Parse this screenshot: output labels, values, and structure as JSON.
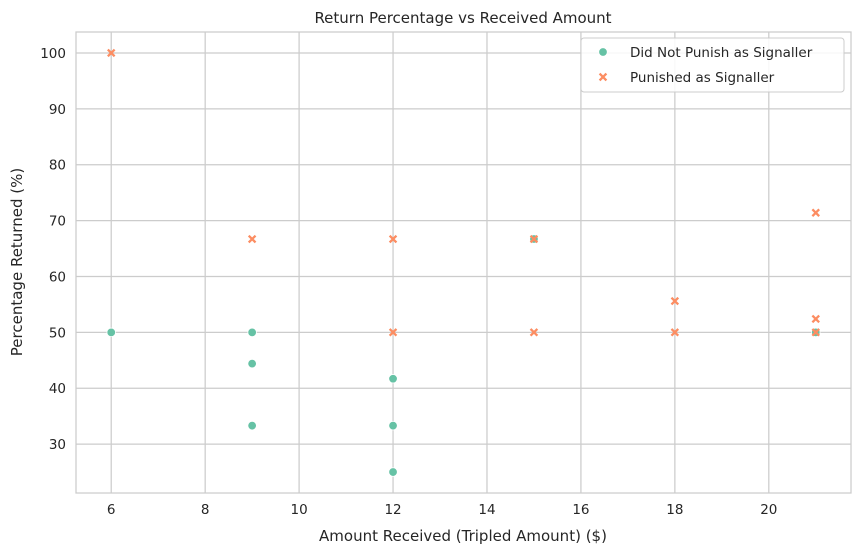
{
  "chart_data": {
    "type": "scatter",
    "title": "Return Percentage vs Received Amount",
    "xlabel": "Amount Received (Tripled Amount) ($)",
    "ylabel": "Percentage Returned (%)",
    "xlim": [
      5.25,
      21.75
    ],
    "ylim": [
      21.25,
      103.75
    ],
    "xticks": [
      "6",
      "8",
      "10",
      "12",
      "14",
      "16",
      "18",
      "20"
    ],
    "yticks": [
      "30",
      "40",
      "50",
      "60",
      "70",
      "80",
      "90",
      "100"
    ],
    "grid": true,
    "legend_position": "top-right",
    "series": [
      {
        "name": "Did Not Punish as Signaller",
        "marker": "circle",
        "color": "#66c2a5",
        "points": [
          [
            6,
            50
          ],
          [
            9,
            50
          ],
          [
            9,
            44.4
          ],
          [
            9,
            33.3
          ],
          [
            12,
            41.7
          ],
          [
            12,
            33.3
          ],
          [
            12,
            25
          ],
          [
            15,
            66.7
          ],
          [
            21,
            50
          ]
        ]
      },
      {
        "name": "Punished as Signaller",
        "marker": "x",
        "color": "#fc8d62",
        "points": [
          [
            6,
            100
          ],
          [
            9,
            66.7
          ],
          [
            12,
            66.7
          ],
          [
            12,
            50
          ],
          [
            15,
            66.7
          ],
          [
            15,
            50
          ],
          [
            18,
            55.6
          ],
          [
            18,
            50
          ],
          [
            21,
            71.4
          ],
          [
            21,
            52.4
          ],
          [
            21,
            50
          ]
        ]
      }
    ]
  }
}
